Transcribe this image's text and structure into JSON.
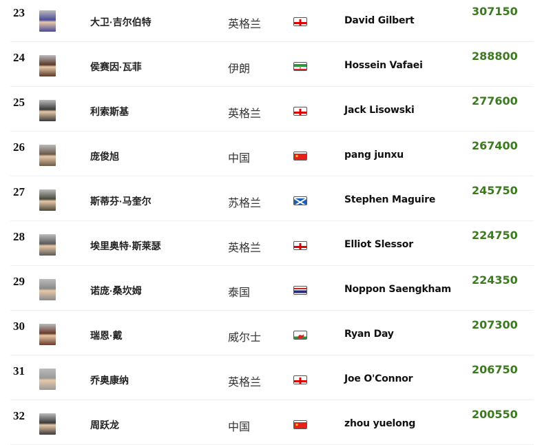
{
  "rows": [
    {
      "rank": "23",
      "cn": "大卫·吉尔伯特",
      "country": "英格兰",
      "flag": "england",
      "en": "David Gilbert",
      "points": "307150",
      "avatar_color": "#4a4a9a"
    },
    {
      "rank": "24",
      "cn": "侯赛因·瓦菲",
      "country": "伊朗",
      "flag": "iran",
      "en": "Hossein Vafaei",
      "points": "288800",
      "avatar_color": "#5a3a2a"
    },
    {
      "rank": "25",
      "cn": "利索斯基",
      "country": "英格兰",
      "flag": "england",
      "en": "Jack Lisowski",
      "points": "277600",
      "avatar_color": "#3a3a3a"
    },
    {
      "rank": "26",
      "cn": "庞俊旭",
      "country": "中国",
      "flag": "china",
      "en": "pang junxu",
      "points": "267400",
      "avatar_color": "#6a5a4a"
    },
    {
      "rank": "27",
      "cn": "斯蒂芬·马奎尔",
      "country": "苏格兰",
      "flag": "scotland",
      "en": "Stephen Maguire",
      "points": "245750",
      "avatar_color": "#4a4a3a"
    },
    {
      "rank": "28",
      "cn": "埃里奥特·斯莱瑟",
      "country": "英格兰",
      "flag": "england",
      "en": "Elliot Slessor",
      "points": "224750",
      "avatar_color": "#5a5a5a"
    },
    {
      "rank": "29",
      "cn": "诺庞·桑坎姆",
      "country": "泰国",
      "flag": "thailand",
      "en": "Noppon Saengkham",
      "points": "224350",
      "avatar_color": "#8a8a8a"
    },
    {
      "rank": "30",
      "cn": "瑞恩·戴",
      "country": "威尔士",
      "flag": "wales",
      "en": "Ryan Day",
      "points": "207300",
      "avatar_color": "#6a3a2a"
    },
    {
      "rank": "31",
      "cn": "乔奥康纳",
      "country": "英格兰",
      "flag": "england",
      "en": "Joe O'Connor",
      "points": "206750",
      "avatar_color": "#9a9a9a"
    },
    {
      "rank": "32",
      "cn": "周跃龙",
      "country": "中国",
      "flag": "china",
      "en": "zhou yuelong",
      "points": "200550",
      "avatar_color": "#3a3a3a"
    }
  ],
  "colors": {
    "points": "#3b7a1f",
    "divider": "#f0f0f0"
  }
}
